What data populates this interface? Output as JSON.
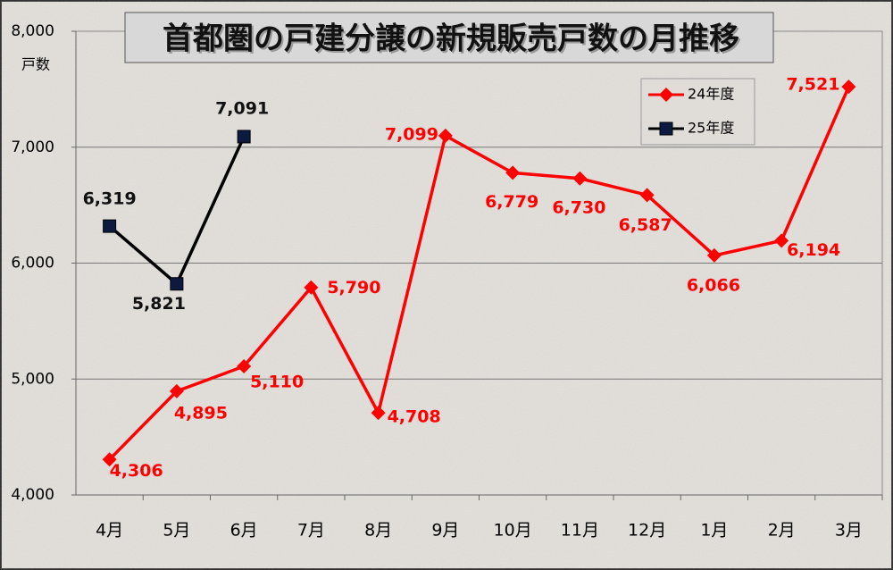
{
  "chart_data": {
    "type": "line",
    "title": "首都圏の戸建分譲の新規販売戸数の月推移",
    "y_label": "戸数",
    "categories": [
      "4月",
      "5月",
      "6月",
      "7月",
      "8月",
      "9月",
      "10月",
      "11月",
      "12月",
      "1月",
      "2月",
      "3月"
    ],
    "series": [
      {
        "name": "24年度",
        "color": "#ff0000",
        "marker": "diamond",
        "values": [
          4306,
          4895,
          5110,
          5790,
          4708,
          7099,
          6779,
          6730,
          6587,
          6066,
          6194,
          7521
        ],
        "value_labels": [
          "4,306",
          "4,895",
          "5,110",
          "5,790",
          "4,708",
          "7,099",
          "6,779",
          "6,730",
          "6,587",
          "6,066",
          "6,194",
          "7,521"
        ]
      },
      {
        "name": "25年度",
        "color": "#0d1a40",
        "line_color": "#000000",
        "marker": "square",
        "values": [
          6319,
          5821,
          7091,
          null,
          null,
          null,
          null,
          null,
          null,
          null,
          null,
          null
        ],
        "value_labels": [
          "6,319",
          "5,821",
          "7,091",
          null,
          null,
          null,
          null,
          null,
          null,
          null,
          null,
          null
        ]
      }
    ],
    "ylim": [
      4000,
      8000
    ],
    "yticks": [
      {
        "value": 4000,
        "label": "4,000"
      },
      {
        "value": 5000,
        "label": "5,000"
      },
      {
        "value": 6000,
        "label": "6,000"
      },
      {
        "value": 7000,
        "label": "7,000"
      },
      {
        "value": 8000,
        "label": "8,000"
      }
    ],
    "grid": true,
    "legend": "upper right"
  }
}
